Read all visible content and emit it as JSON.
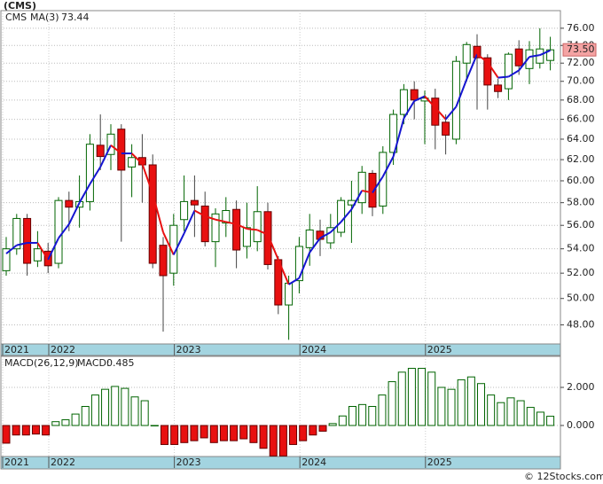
{
  "chart_data": [
    {
      "type": "candlestick",
      "title": "(CMS)",
      "symbol": "CMS",
      "categories": [
        "2021",
        null,
        null,
        null,
        null,
        "2022",
        null,
        null,
        null,
        null,
        null,
        null,
        null,
        null,
        null,
        null,
        null,
        "2023",
        null,
        null,
        null,
        null,
        null,
        null,
        null,
        null,
        null,
        null,
        null,
        "2024",
        null,
        null,
        null,
        null,
        null,
        null,
        null,
        null,
        null,
        null,
        null,
        "2025",
        null,
        null,
        null,
        null,
        null,
        null,
        null,
        null,
        null,
        null,
        null
      ],
      "open": [
        52.2,
        54.0,
        56.6,
        53.0,
        53.8,
        52.8,
        58.2,
        57.6,
        58.1,
        63.4,
        62.5,
        65.0,
        61.3,
        62.2,
        61.5,
        54.3,
        52.0,
        56.5,
        58.2,
        57.7,
        54.6,
        56.2,
        57.4,
        54.2,
        54.6,
        57.2,
        53.1,
        49.5,
        51.4,
        54.1,
        55.5,
        54.5,
        55.4,
        57.8,
        58.0,
        60.7,
        57.7,
        62.7,
        66.5,
        69.1,
        67.9,
        68.2,
        65.7,
        64.0,
        72.0,
        73.9,
        72.6,
        69.6,
        69.2,
        73.6,
        71.4,
        72.0,
        72.3
      ],
      "high": [
        55.0,
        57.0,
        57.0,
        55.5,
        54.5,
        58.5,
        59.0,
        60.5,
        64.5,
        66.5,
        65.5,
        65.5,
        63.5,
        64.5,
        62.5,
        55.0,
        57.0,
        60.5,
        60.5,
        59.0,
        57.5,
        58.5,
        58.2,
        58.0,
        59.5,
        58.0,
        53.4,
        51.8,
        55.0,
        57.0,
        56.5,
        57.0,
        58.5,
        60.0,
        61.4,
        61.0,
        63.3,
        67.0,
        69.7,
        70.0,
        69.0,
        69.2,
        66.5,
        72.8,
        74.4,
        75.3,
        73.0,
        70.3,
        73.2,
        74.6,
        74.5,
        76.0,
        75.0
      ],
      "low": [
        51.8,
        53.5,
        51.8,
        52.5,
        52.0,
        52.4,
        55.5,
        55.8,
        57.3,
        61.0,
        61.0,
        54.6,
        58.5,
        58.0,
        52.4,
        47.5,
        51.0,
        55.5,
        55.0,
        54.2,
        52.5,
        55.0,
        52.4,
        53.2,
        53.8,
        52.3,
        48.8,
        46.9,
        50.4,
        52.6,
        53.4,
        54.0,
        55.0,
        54.5,
        57.0,
        56.8,
        57.0,
        61.5,
        65.5,
        66.0,
        63.5,
        63.0,
        62.5,
        63.5,
        70.0,
        67.0,
        67.0,
        68.2,
        68.0,
        70.7,
        69.7,
        71.4,
        71.2
      ],
      "close": [
        54.0,
        56.6,
        52.8,
        54.0,
        52.6,
        58.2,
        57.6,
        58.1,
        63.5,
        62.3,
        64.5,
        61.0,
        62.2,
        61.5,
        52.8,
        51.8,
        56.0,
        58.1,
        57.8,
        54.6,
        57.0,
        57.3,
        53.9,
        55.8,
        57.2,
        52.7,
        49.5,
        51.2,
        54.2,
        55.6,
        54.8,
        55.8,
        58.2,
        58.2,
        60.8,
        57.6,
        62.7,
        66.5,
        69.1,
        68.0,
        68.2,
        65.4,
        64.4,
        72.2,
        74.1,
        72.6,
        69.6,
        68.9,
        73.0,
        71.7,
        73.5,
        73.6,
        73.5
      ],
      "close_labels": [
        null,
        null,
        null,
        null,
        null,
        null,
        null,
        null,
        null,
        null,
        null,
        null,
        null,
        null,
        null,
        null,
        null,
        null,
        null,
        null,
        null,
        null,
        null,
        null,
        null,
        null,
        null,
        null,
        null,
        null,
        null,
        null,
        null,
        null,
        null,
        null,
        null,
        null,
        null,
        null,
        null,
        null,
        null,
        null,
        null,
        null,
        null,
        null,
        null,
        null,
        null,
        null,
        "73.50"
      ],
      "ma": {
        "name": "MA(3)",
        "values": [
          53.6,
          54.3,
          54.5,
          54.5,
          53.1,
          54.9,
          56.1,
          58.0,
          59.7,
          61.3,
          63.4,
          62.6,
          62.6,
          61.6,
          58.8,
          55.4,
          53.5,
          55.3,
          57.3,
          56.8,
          56.5,
          56.3,
          56.1,
          55.7,
          55.6,
          55.2,
          53.1,
          51.1,
          51.6,
          53.7,
          54.9,
          55.4,
          56.3,
          57.4,
          59.1,
          58.9,
          60.4,
          62.3,
          66.1,
          67.9,
          68.4,
          67.2,
          66.0,
          67.3,
          70.2,
          73.0,
          72.1,
          70.4,
          70.5,
          71.2,
          72.7,
          72.9,
          73.44
        ]
      },
      "ylim": [
        46.6,
        78.1
      ],
      "log": true,
      "grid": true,
      "yticks": [
        {
          "value": 48,
          "label": "48.00"
        },
        {
          "value": 50,
          "label": "50.00"
        },
        {
          "value": 52,
          "label": "52.00"
        },
        {
          "value": 54,
          "label": "54.00"
        },
        {
          "value": 56,
          "label": "56.00"
        },
        {
          "value": 58,
          "label": "58.00"
        },
        {
          "value": 60,
          "label": "60.00"
        },
        {
          "value": 62,
          "label": "62.00"
        },
        {
          "value": 64,
          "label": "64.00"
        },
        {
          "value": 66,
          "label": "66.00"
        },
        {
          "value": 68,
          "label": "68.00"
        },
        {
          "value": 70,
          "label": "70.00"
        },
        {
          "value": 72,
          "label": "72.00"
        },
        {
          "value": 74,
          "label": "74.00"
        },
        {
          "value": 76,
          "label": "76.00"
        }
      ],
      "up_color": "#006400",
      "down_color": "#e81010",
      "ma_up_color": "#1515d0",
      "ma_down_color": "#e81010"
    },
    {
      "type": "bar",
      "title": "MACD(26,12,9)",
      "value_name": "MACD:",
      "values": [
        -0.93,
        -0.5,
        -0.5,
        -0.45,
        -0.5,
        0.2,
        0.3,
        0.6,
        1.0,
        1.6,
        1.9,
        2.05,
        1.95,
        1.5,
        1.3,
        0.0,
        -1.0,
        -1.0,
        -0.9,
        -0.8,
        -0.65,
        -0.9,
        -0.8,
        -0.8,
        -0.7,
        -0.9,
        -1.2,
        -1.6,
        -1.6,
        -1.0,
        -0.8,
        -0.5,
        -0.3,
        0.1,
        0.5,
        1.0,
        1.1,
        1.0,
        1.6,
        2.3,
        2.8,
        3.0,
        3.0,
        2.8,
        2.0,
        1.9,
        2.4,
        2.55,
        2.2,
        1.6,
        1.2,
        1.45,
        1.3,
        0.95,
        0.7,
        0.485
      ],
      "ylim": [
        -1.63,
        3.63
      ],
      "grid": true,
      "yticks": [
        {
          "value": 0,
          "label": "0.000"
        },
        {
          "value": 2,
          "label": "2.000"
        }
      ],
      "up_color": "#006400",
      "down_color": "#e81010"
    },
    {
      "type": "text",
      "watermark": "© 12Stocks.com"
    }
  ]
}
